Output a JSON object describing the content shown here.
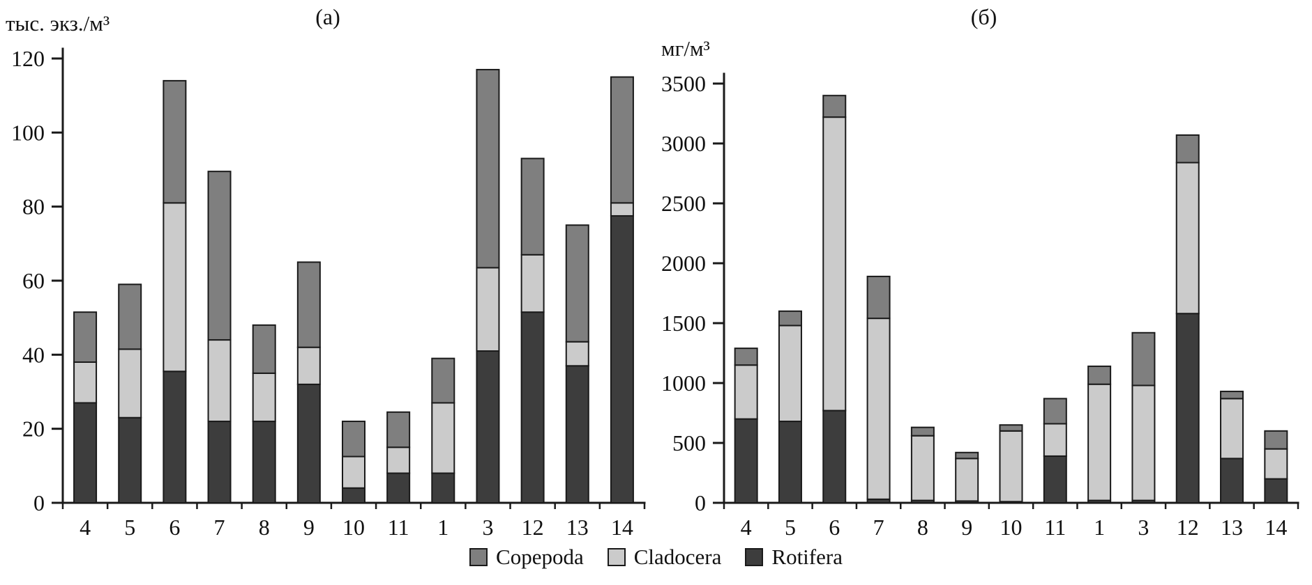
{
  "page": {
    "background": "#ffffff",
    "ink_color": "#1a1a1a"
  },
  "legend": {
    "items": [
      {
        "label": "Copepoda",
        "color": "#7f7f7f"
      },
      {
        "label": "Cladocera",
        "color": "#cbcbcb"
      },
      {
        "label": "Rotifera",
        "color": "#3d3d3d"
      }
    ]
  },
  "chart_data": [
    {
      "type": "bar",
      "stacked": true,
      "title": "(а)",
      "ylabel": "тыс. экз./м³",
      "xlabel": "",
      "categories": [
        "4",
        "5",
        "6",
        "7",
        "8",
        "9",
        "10",
        "11",
        "1",
        "3",
        "12",
        "13",
        "14"
      ],
      "ylim": [
        0,
        120
      ],
      "ytick_step": 20,
      "grid": false,
      "legend_position": "bottom",
      "series": [
        {
          "name": "Rotifera",
          "color": "#3d3d3d",
          "values": [
            27,
            23,
            35.5,
            22,
            22,
            32,
            4,
            8,
            8,
            41,
            51.5,
            37,
            77.5
          ]
        },
        {
          "name": "Cladocera",
          "color": "#cbcbcb",
          "values": [
            11,
            18.5,
            45.5,
            22,
            13,
            10,
            8.5,
            7,
            19,
            22.5,
            15.5,
            6.5,
            3.5
          ]
        },
        {
          "name": "Copepoda",
          "color": "#7f7f7f",
          "values": [
            13.5,
            17.5,
            33,
            45.5,
            13,
            23,
            9.5,
            9.5,
            12,
            53.5,
            26,
            31.5,
            34
          ]
        }
      ]
    },
    {
      "type": "bar",
      "stacked": true,
      "title": "(б)",
      "ylabel": "мг/м³",
      "xlabel": "",
      "categories": [
        "4",
        "5",
        "6",
        "7",
        "8",
        "9",
        "10",
        "11",
        "1",
        "3",
        "12",
        "13",
        "14"
      ],
      "ylim": [
        0,
        3500
      ],
      "ytick_step": 500,
      "grid": false,
      "legend_position": "bottom",
      "series": [
        {
          "name": "Rotifera",
          "color": "#3d3d3d",
          "values": [
            700,
            680,
            770,
            30,
            20,
            15,
            10,
            390,
            20,
            20,
            1580,
            370,
            200
          ]
        },
        {
          "name": "Cladocera",
          "color": "#cbcbcb",
          "values": [
            450,
            800,
            2450,
            1510,
            540,
            355,
            590,
            270,
            970,
            960,
            1260,
            500,
            250
          ]
        },
        {
          "name": "Copepoda",
          "color": "#7f7f7f",
          "values": [
            140,
            120,
            180,
            350,
            70,
            50,
            50,
            210,
            150,
            440,
            230,
            60,
            150
          ]
        }
      ]
    }
  ]
}
